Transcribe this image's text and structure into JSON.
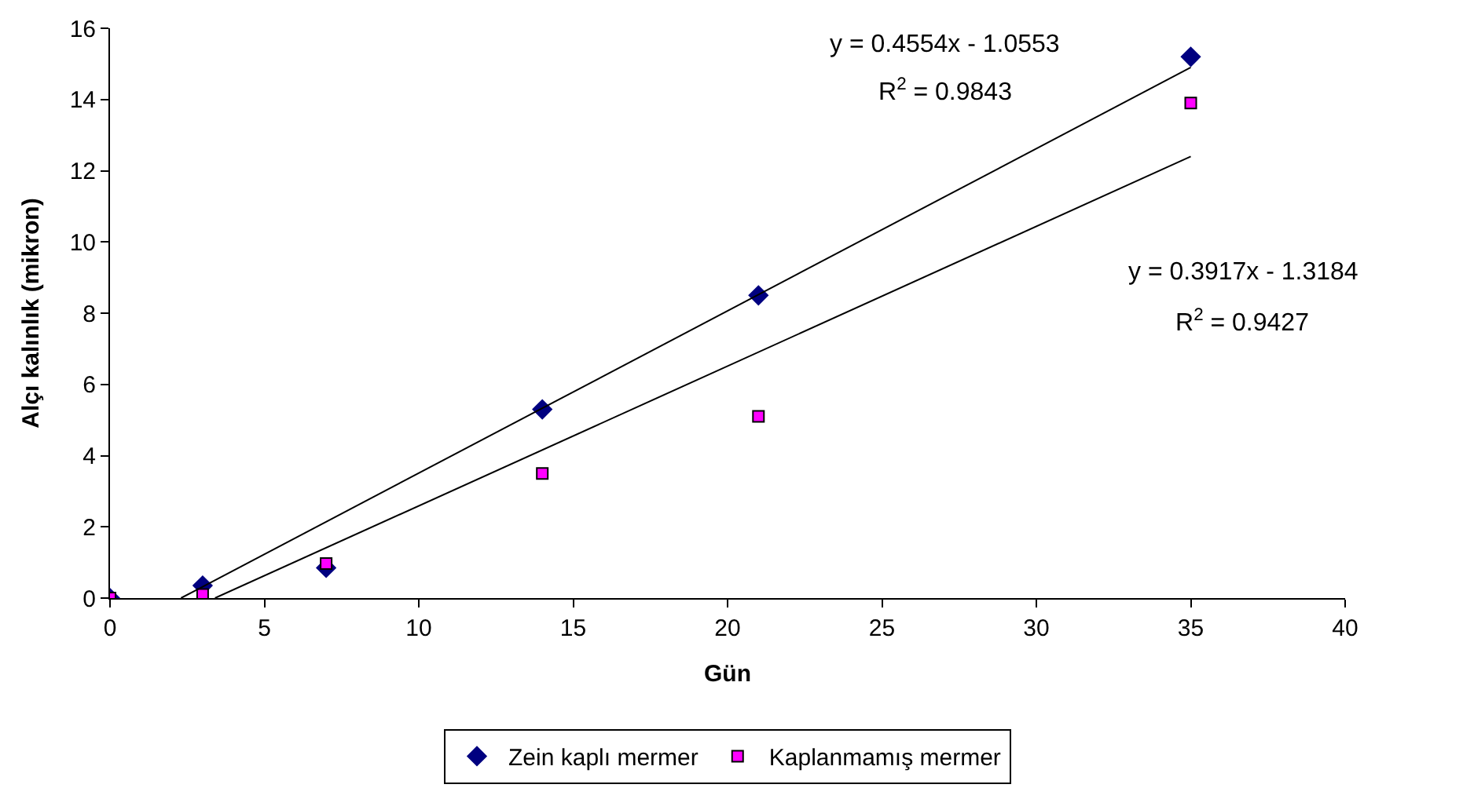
{
  "chart_data": {
    "type": "scatter",
    "xlabel": "Gün",
    "ylabel": "Alçı kalınlık (mikron)",
    "xlim": [
      0,
      40
    ],
    "xticks": [
      0,
      5,
      10,
      15,
      20,
      25,
      30,
      35,
      40
    ],
    "ylim": [
      0,
      16
    ],
    "yticks": [
      0,
      2,
      4,
      6,
      8,
      10,
      12,
      14,
      16
    ],
    "legend": "bottom",
    "series": [
      {
        "name": "Zein kaplı mermer",
        "marker": "diamond",
        "color": "#000080",
        "x": [
          0,
          3,
          7,
          14,
          21,
          35
        ],
        "values": [
          0,
          0.35,
          0.85,
          5.3,
          8.5,
          15.2
        ]
      },
      {
        "name": "Kaplanmamış mermer",
        "marker": "square",
        "color": "#ff00ff",
        "x": [
          0,
          3,
          7,
          14,
          21,
          35
        ],
        "values": [
          0,
          0.1,
          0.97,
          3.5,
          5.1,
          13.9
        ]
      },
      {
        "type": "line",
        "marker": "none",
        "line_style": "solid",
        "color": "#000000",
        "x": [
          2.3,
          35
        ],
        "values": [
          0,
          14.9
        ]
      },
      {
        "type": "line",
        "marker": "none",
        "line_style": "solid",
        "color": "#000000",
        "x": [
          3.4,
          35
        ],
        "values": [
          0,
          12.4
        ]
      }
    ],
    "annotations": [
      "y = 0.4554x - 1.0553",
      "R$^{2}$ = 0.9843",
      "y = 0.3917x - 1.3184",
      "R$^{2}$ = 0.9427"
    ]
  }
}
